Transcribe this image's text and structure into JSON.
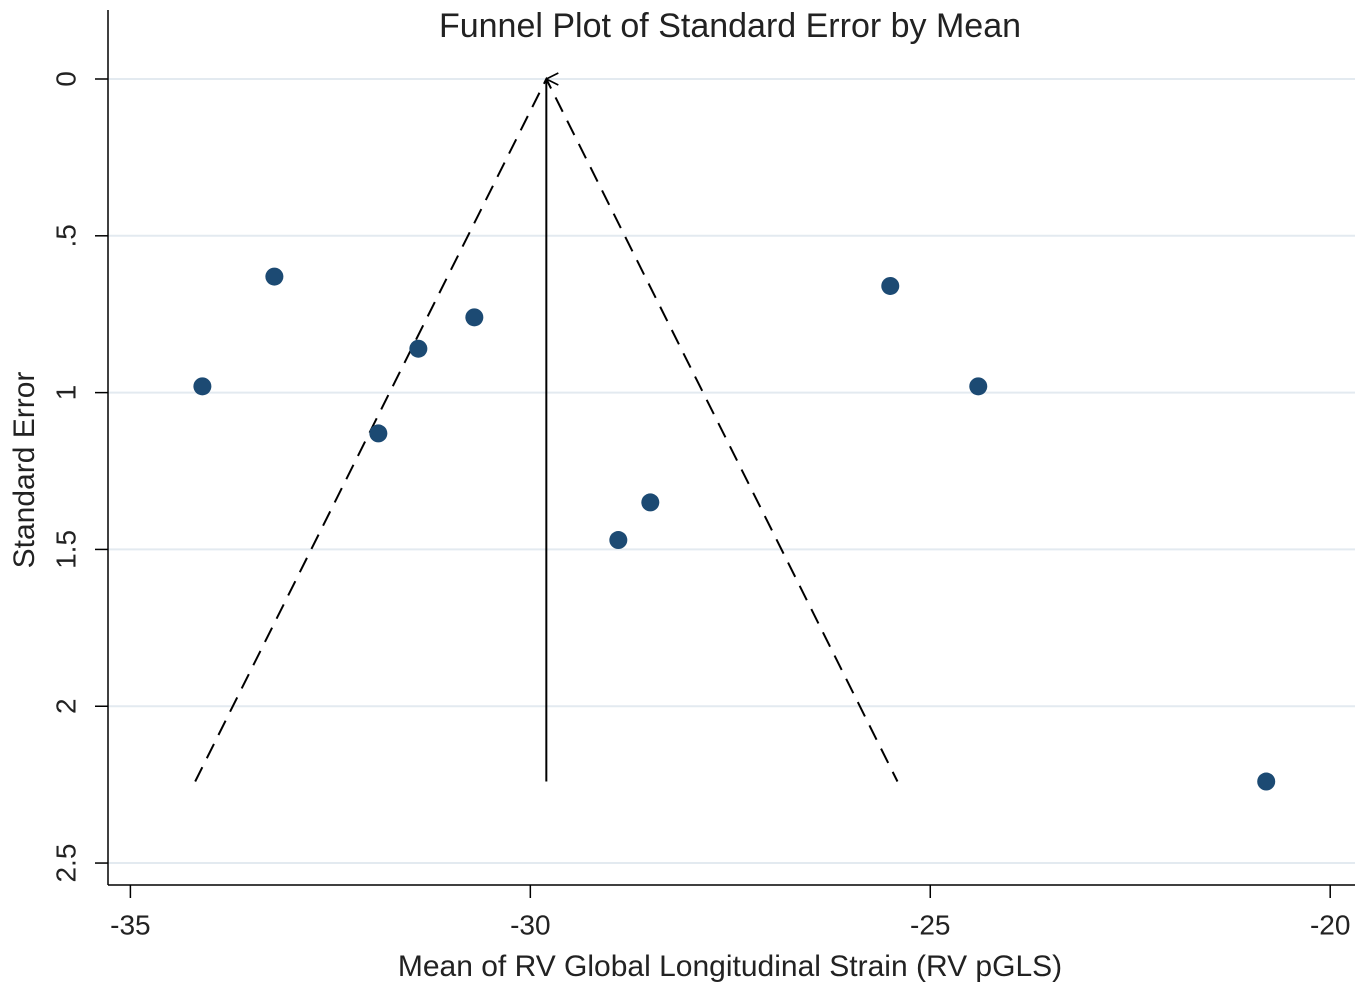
{
  "chart_data": {
    "type": "scatter",
    "title": "Funnel Plot of Standard Error by Mean",
    "x_label": "Mean of RV Global Longitudinal Strain (RV pGLS)",
    "y_label": "Standard Error",
    "x": [
      -34.1,
      -33.2,
      -31.9,
      -31.4,
      -30.7,
      -28.9,
      -28.5,
      -25.5,
      -24.4,
      -20.8
    ],
    "y": [
      0.98,
      0.63,
      1.13,
      0.86,
      0.76,
      1.47,
      1.35,
      0.66,
      0.98,
      2.24
    ],
    "color": "#1c4a73",
    "lines": [
      {
        "x": [
          -29.8,
          -29.8
        ],
        "y": [
          2.24,
          0
        ],
        "style": "solid",
        "arrow": true
      },
      {
        "x": [
          -34.19,
          -29.8,
          -25.41
        ],
        "y": [
          2.24,
          0,
          2.24
        ],
        "style": "dashed",
        "arrow": false
      }
    ],
    "xlim": [
      -35.28,
      -19.69
    ],
    "ylim": [
      -0.22,
      2.57
    ],
    "y_reversed": true,
    "xticks": [
      -35,
      -30,
      -25,
      -20
    ],
    "yticks": [
      0,
      {
        "value": 0.5,
        "label": ".5"
      },
      1,
      1.5,
      2,
      2.5
    ],
    "grid": true
  }
}
